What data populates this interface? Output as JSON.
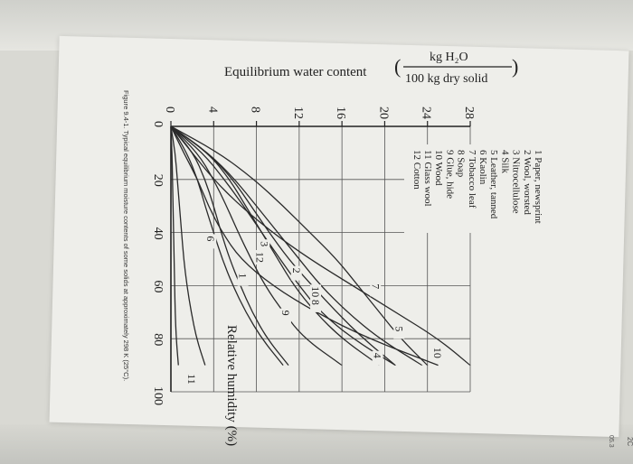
{
  "chart_data": {
    "type": "line",
    "ylabel_text": "Equilibrium water content",
    "ylabel_frac_num": "kg H₂O",
    "ylabel_frac_den": "100 kg dry solid",
    "xlabel": "Relative humidity (%)",
    "caption": "Figure 9.4-1. Typical equilibrium moisture contents of some solids at approximately 298 K (25°C).",
    "xlim": [
      0,
      100
    ],
    "ylim": [
      0,
      28
    ],
    "x_ticks": [
      "0",
      "20",
      "40",
      "60",
      "80",
      "100"
    ],
    "y_ticks": [
      "0",
      "4",
      "8",
      "12",
      "16",
      "20",
      "24",
      "28"
    ],
    "legend": [
      "1  Paper, newsprint",
      "2  Wool, worsted",
      "3  Nitrocellulose",
      "4  Silk",
      "5  Leather, tanned",
      "6  Kaolin",
      "7  Tobacco leaf",
      "8  Soap",
      "9  Glue, hide",
      "10 Wood",
      "11 Glass wool",
      "12 Cotton"
    ],
    "series": [
      {
        "label": "1",
        "x": [
          0,
          10,
          20,
          30,
          40,
          50,
          60,
          70,
          80,
          90
        ],
        "y": [
          0,
          2.1,
          3.2,
          4.0,
          4.7,
          5.5,
          6.5,
          7.6,
          9.0,
          11.0
        ]
      },
      {
        "label": "2",
        "x": [
          0,
          10,
          20,
          30,
          40,
          50,
          60,
          70,
          80,
          90
        ],
        "y": [
          0,
          3.5,
          5.8,
          7.5,
          9.2,
          11.0,
          13.2,
          15.5,
          18.0,
          21.0
        ]
      },
      {
        "label": "3",
        "x": [
          0,
          10,
          20,
          30,
          40,
          50,
          60,
          70,
          80,
          90
        ],
        "y": [
          0,
          1.5,
          2.5,
          3.2,
          4.0,
          4.8,
          5.8,
          7.0,
          8.5,
          10.5
        ]
      },
      {
        "label": "4",
        "x": [
          0,
          10,
          20,
          30,
          40,
          50,
          60,
          70,
          80,
          90
        ],
        "y": [
          0,
          3.5,
          5.5,
          7.0,
          8.5,
          10.0,
          11.5,
          13.5,
          16.0,
          19.5
        ]
      },
      {
        "label": "5",
        "x": [
          0,
          10,
          20,
          30,
          40,
          50,
          60,
          70,
          80,
          90
        ],
        "y": [
          0,
          4.5,
          7.8,
          10.5,
          13.0,
          15.5,
          17.5,
          19.5,
          21.5,
          24.0
        ]
      },
      {
        "label": "6",
        "x": [
          0,
          10,
          20,
          30,
          40,
          50,
          60,
          70,
          80,
          90
        ],
        "y": [
          0,
          0.4,
          0.6,
          0.8,
          1.0,
          1.2,
          1.5,
          1.9,
          2.4,
          3.2
        ]
      },
      {
        "label": "7",
        "x": [
          0,
          10,
          20,
          30,
          40,
          50,
          60,
          70,
          80,
          90
        ],
        "y": [
          0,
          2.0,
          4.0,
          6.5,
          9.5,
          13.0,
          17.0,
          21.0,
          25.0,
          28.0
        ]
      },
      {
        "label": "8",
        "x": [
          0,
          10,
          20,
          30,
          40,
          50,
          60,
          70,
          80,
          90
        ],
        "y": [
          0,
          1.2,
          2.5,
          3.5,
          4.8,
          6.5,
          9.5,
          13.5,
          18.5,
          25.0
        ]
      },
      {
        "label": "9",
        "x": [
          0,
          10,
          20,
          30,
          40,
          50,
          60,
          70,
          80,
          90
        ],
        "y": [
          0,
          3.5,
          6.0,
          8.0,
          10.0,
          12.0,
          14.0,
          16.5,
          19.5,
          23.5
        ]
      },
      {
        "label": "10",
        "x": [
          0,
          10,
          20,
          30,
          40,
          50,
          60,
          70,
          80,
          90
        ],
        "y": [
          0,
          3.0,
          5.0,
          6.8,
          8.5,
          10.2,
          12.0,
          14.0,
          17.0,
          21.0
        ]
      },
      {
        "label": "11",
        "x": [
          0,
          10,
          20,
          30,
          40,
          50,
          60,
          70,
          80,
          90
        ],
        "y": [
          0,
          0.1,
          0.15,
          0.2,
          0.25,
          0.3,
          0.35,
          0.4,
          0.5,
          0.7
        ]
      },
      {
        "label": "12",
        "x": [
          0,
          10,
          20,
          30,
          40,
          50,
          60,
          70,
          80,
          90
        ],
        "y": [
          0,
          2.5,
          4.0,
          5.2,
          6.3,
          7.5,
          8.8,
          10.5,
          12.5,
          16.0
        ]
      }
    ],
    "curve_label_points": [
      {
        "label": "10",
        "x": 86,
        "y": 24.6
      },
      {
        "label": "7",
        "x": 62,
        "y": 18.8
      },
      {
        "label": "5",
        "x": 78,
        "y": 21.0
      },
      {
        "label": "4",
        "x": 88,
        "y": 19.0
      },
      {
        "label": "10",
        "x": 63,
        "y": 13.2
      },
      {
        "label": "8",
        "x": 68,
        "y": 13.2
      },
      {
        "label": "2",
        "x": 56,
        "y": 11.4
      },
      {
        "label": "9",
        "x": 72,
        "y": 10.4
      },
      {
        "label": "3",
        "x": 46,
        "y": 8.4
      },
      {
        "label": "12",
        "x": 50,
        "y": 8.0
      },
      {
        "label": "1",
        "x": 58,
        "y": 6.4
      },
      {
        "label": "6",
        "x": 44,
        "y": 3.4
      },
      {
        "label": "11",
        "x": 96,
        "y": 1.6
      }
    ],
    "grid": true
  },
  "margin_marks": [
    "2C",
    "05.3"
  ]
}
